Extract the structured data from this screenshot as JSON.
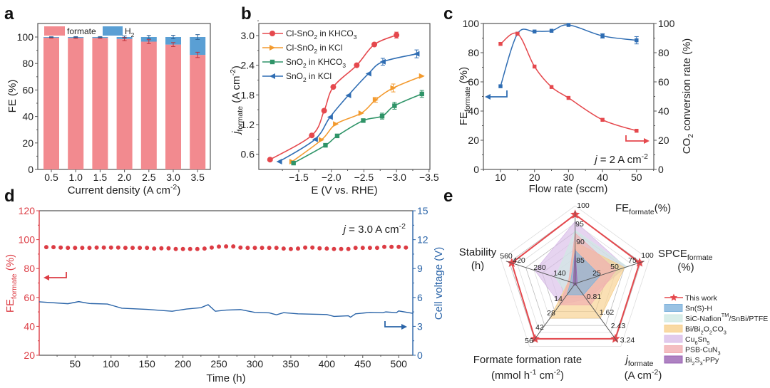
{
  "panel_labels": [
    "a",
    "b",
    "c",
    "d",
    "e"
  ],
  "colors": {
    "red": "#e5484d",
    "formate": "#f28a8f",
    "h2": "#5a9fd4",
    "orange": "#f39a2e",
    "green": "#2f9468",
    "blue": "#2f6db3",
    "d_red": "#dc3c44",
    "d_blue": "#2a64a8"
  },
  "chart_data": [
    {
      "panel": "a",
      "type": "bar",
      "stacked": true,
      "categories": [
        "0.5",
        "1.0",
        "1.5",
        "2.0",
        "2.5",
        "3.0",
        "3.5"
      ],
      "series": [
        {
          "name": "formate",
          "values": [
            99.5,
            99.3,
            99.3,
            98.5,
            96.5,
            94.3,
            86.5
          ],
          "err": [
            0.3,
            0.3,
            0.3,
            1.2,
            1.5,
            1.5,
            2.0
          ]
        },
        {
          "name": [
            [
              "H",
              ""
            ],
            [
              "2",
              "sub"
            ]
          ],
          "values": [
            0.5,
            0.7,
            0.7,
            1.5,
            3.5,
            5.7,
            13.5
          ],
          "err": [
            0.2,
            0.3,
            0.3,
            0.8,
            1.2,
            1.3,
            1.8
          ]
        }
      ],
      "xlabel": [
        [
          "Current density (A cm",
          ""
        ],
        [
          "-2",
          "sup"
        ],
        [
          ")",
          ""
        ]
      ],
      "ylabel": "FE (%)",
      "ylim": [
        0,
        110
      ],
      "yticks": [
        "0",
        "20",
        "40",
        "60",
        "80",
        "100"
      ],
      "legend": "top"
    },
    {
      "panel": "b",
      "type": "line",
      "xlabel": "E (V vs. RHE)",
      "ylabel": [
        [
          "j",
          ""
        ],
        [
          "formate",
          "sub"
        ],
        [
          " (A cm",
          ""
        ],
        [
          "-2",
          "sup"
        ],
        [
          ")",
          ""
        ]
      ],
      "xlim": [
        -0.85,
        -3.5
      ],
      "ylim": [
        0.3,
        3.24
      ],
      "xticks": [
        "−1.5",
        "−2.0",
        "−2.5",
        "−3.0",
        "−3.5"
      ],
      "yticks": [
        "0.6",
        "1.2",
        "1.8",
        "2.4",
        "3.0"
      ],
      "legend": "top-left",
      "series": [
        {
          "name": [
            [
              "Cl-SnO",
              ""
            ],
            [
              "2",
              "sub"
            ],
            [
              " in KHCO",
              ""
            ],
            [
              "3",
              "sub"
            ]
          ],
          "marker": "circle",
          "x": [
            -1.06,
            -1.7,
            -1.89,
            -2.03,
            -2.39,
            -2.66,
            -3.0
          ],
          "y": [
            0.49,
            0.98,
            1.48,
            1.96,
            2.4,
            2.82,
            3.01
          ],
          "err": [
            0,
            0,
            0,
            0,
            0,
            0,
            0.06
          ]
        },
        {
          "name": [
            [
              "Cl-SnO",
              ""
            ],
            [
              "2",
              "sub"
            ],
            [
              " in KCl",
              ""
            ]
          ],
          "marker": "triangle-right",
          "x": [
            -1.4,
            -1.85,
            -2.07,
            -2.46,
            -2.68,
            -2.95,
            -3.39
          ],
          "y": [
            0.45,
            0.89,
            1.21,
            1.43,
            1.7,
            1.94,
            2.18
          ],
          "err": [
            0,
            0,
            0,
            0,
            0.05,
            0.08,
            0
          ]
        },
        {
          "name": [
            [
              "SnO",
              ""
            ],
            [
              "2",
              "sub"
            ],
            [
              " in KHCO",
              ""
            ],
            [
              "3",
              "sub"
            ]
          ],
          "marker": "square",
          "x": [
            -1.42,
            -1.91,
            -2.09,
            -2.49,
            -2.78,
            -2.97,
            -3.39
          ],
          "y": [
            0.42,
            0.78,
            0.97,
            1.28,
            1.37,
            1.58,
            1.82
          ],
          "err": [
            0,
            0,
            0,
            0.03,
            0.06,
            0.07,
            0.07
          ]
        },
        {
          "name": [
            [
              "SnO",
              ""
            ],
            [
              "2",
              "sub"
            ],
            [
              " in KCl",
              ""
            ]
          ],
          "marker": "triangle-left",
          "x": [
            -1.2,
            -1.75,
            -1.98,
            -2.26,
            -2.57,
            -2.79,
            -3.31
          ],
          "y": [
            0.45,
            0.9,
            1.35,
            1.79,
            2.23,
            2.47,
            2.63
          ],
          "err": [
            0,
            0,
            0,
            0,
            0,
            0.07,
            0.08
          ]
        }
      ]
    },
    {
      "panel": "c",
      "type": "line",
      "xlabel": "Flow rate (sccm)",
      "ylabel": [
        [
          "FE",
          ""
        ],
        [
          "formate",
          "sub"
        ],
        [
          " (%)",
          ""
        ]
      ],
      "y2label": [
        [
          "CO",
          ""
        ],
        [
          "2",
          "sub"
        ],
        [
          " conversion rate (%)",
          ""
        ]
      ],
      "xlim": [
        5,
        55
      ],
      "ylim": [
        0,
        100
      ],
      "y2lim": [
        0,
        100
      ],
      "xticks": [
        "10",
        "20",
        "30",
        "40",
        "50"
      ],
      "yticks": [
        "0",
        "20",
        "40",
        "60",
        "80",
        "100"
      ],
      "annotation": [
        [
          "j",
          ""
        ],
        [
          " = 2 A cm",
          ""
        ],
        [
          "-2",
          "sup"
        ]
      ],
      "x": [
        10,
        15,
        20,
        25,
        30,
        40,
        50
      ],
      "series": [
        {
          "name": "FE formate",
          "axis": "left",
          "values": [
            57,
            93,
            94.5,
            95,
            99,
            91.5,
            88.5
          ],
          "err": [
            0,
            0,
            0,
            0,
            0,
            1.5,
            2.5
          ]
        },
        {
          "name": "CO2 conversion rate",
          "axis": "right",
          "values": [
            86,
            93,
            70.5,
            56.5,
            49,
            34,
            26.5
          ],
          "err": [
            0,
            0,
            0,
            0,
            0,
            0,
            0
          ]
        }
      ]
    },
    {
      "panel": "d",
      "type": "line",
      "xlabel": "Time (h)",
      "ylabel": [
        [
          "FE",
          ""
        ],
        [
          "formate",
          "sub"
        ],
        [
          " (%)",
          ""
        ]
      ],
      "y2label": "Cell voltage (V)",
      "xlim": [
        0,
        520
      ],
      "ylim": [
        20,
        120
      ],
      "y2lim": [
        0,
        15
      ],
      "xticks": [
        "50",
        "100",
        "150",
        "200",
        "250",
        "300",
        "350",
        "400",
        "450",
        "500"
      ],
      "yticks": [
        "20",
        "40",
        "60",
        "80",
        "100",
        "120"
      ],
      "y2ticks": [
        "0",
        "3",
        "6",
        "9",
        "12",
        "15"
      ],
      "annotation": [
        [
          "j",
          ""
        ],
        [
          " = 3.0 A cm",
          ""
        ],
        [
          "-2",
          "sup"
        ]
      ],
      "fe": {
        "t": [
          10,
          20,
          30,
          40,
          50,
          60,
          70,
          80,
          90,
          100,
          110,
          120,
          130,
          140,
          150,
          160,
          170,
          180,
          190,
          200,
          210,
          220,
          230,
          240,
          250,
          260,
          270,
          280,
          290,
          300,
          310,
          320,
          330,
          340,
          350,
          360,
          370,
          380,
          390,
          400,
          410,
          420,
          430,
          440,
          450,
          460,
          470,
          480,
          490,
          500,
          510
        ],
        "values": [
          94.8,
          94.8,
          94.5,
          94.3,
          94.3,
          94.3,
          94.3,
          94.5,
          94.5,
          94.5,
          94.5,
          94.3,
          94.3,
          94.3,
          94.3,
          93.8,
          94.0,
          94.0,
          93.5,
          93.5,
          93.5,
          93.5,
          93.8,
          94.5,
          95.2,
          95.3,
          95.3,
          94.5,
          94.3,
          94.3,
          94.3,
          94.3,
          94.3,
          93.8,
          93.5,
          93.8,
          94.5,
          94.5,
          94.0,
          93.8,
          93.5,
          93.5,
          93.5,
          94.3,
          94.3,
          94.3,
          94.3,
          95.0,
          95.0,
          95.0,
          94.5
        ]
      },
      "voltage": {
        "t": [
          0,
          40,
          55,
          70,
          95,
          105,
          115,
          150,
          185,
          205,
          225,
          235,
          245,
          260,
          280,
          300,
          320,
          330,
          340,
          360,
          400,
          410,
          430,
          433,
          440,
          460,
          478,
          482,
          497,
          500,
          520
        ],
        "values": [
          5.55,
          5.35,
          5.57,
          5.37,
          5.32,
          5.1,
          4.88,
          4.76,
          4.57,
          4.8,
          4.94,
          5.25,
          4.57,
          4.69,
          4.74,
          4.45,
          4.4,
          4.2,
          4.42,
          4.3,
          4.23,
          4.03,
          4.1,
          3.95,
          4.3,
          4.45,
          4.42,
          4.5,
          4.42,
          4.6,
          4.35
        ]
      }
    },
    {
      "panel": "e",
      "type": "radar",
      "axes": [
        {
          "name": [
            [
              "FE",
              ""
            ],
            [
              "formate",
              "sub"
            ],
            [
              "(%)",
              ""
            ]
          ],
          "unit": "",
          "range": [
            80,
            100
          ],
          "ticks": [
            "85",
            "90",
            "95",
            "100"
          ]
        },
        {
          "name": [
            [
              "SPCE",
              ""
            ],
            [
              "formate",
              "sub"
            ]
          ],
          "unit": "(%)",
          "range": [
            0,
            100
          ],
          "ticks": [
            "25",
            "50",
            "75",
            "100"
          ]
        },
        {
          "name": [
            [
              "j",
              ""
            ],
            [
              "formate",
              "sub"
            ]
          ],
          "unit": [
            [
              "(A cm",
              ""
            ],
            [
              "-2",
              "sup"
            ],
            [
              ")",
              ""
            ]
          ],
          "range": [
            0,
            3.24
          ],
          "ticks": [
            "0.81",
            "1.62",
            "2.43",
            "3.24"
          ]
        },
        {
          "name": "Formate formation rate",
          "unit": [
            [
              "(mmol h",
              ""
            ],
            [
              "-1",
              "sup"
            ],
            [
              " cm",
              ""
            ],
            [
              "-2",
              "sup"
            ],
            [
              ")",
              ""
            ]
          ],
          "range": [
            0,
            56
          ],
          "ticks": [
            "14",
            "28",
            "42",
            "56"
          ]
        },
        {
          "name": "Stability",
          "unit": "(h)",
          "range": [
            0,
            560
          ],
          "ticks": [
            "140",
            "280",
            "420",
            "560"
          ]
        }
      ],
      "series": [
        {
          "name": [
            [
              "Cu",
              ""
            ],
            [
              "6",
              "sub"
            ],
            [
              "Sn",
              ""
            ],
            [
              "5",
              "sub"
            ]
          ],
          "color": "#d9bde8",
          "values": [
            98,
            77,
            0.91,
            20.7,
            342
          ]
        },
        {
          "name": [
            [
              "SiC-Nafion",
              ""
            ],
            [
              "TM",
              "sup"
            ],
            [
              "/SnBi/PTFE",
              ""
            ]
          ],
          "color": "#cfeae3",
          "values": [
            95.4,
            79,
            0.65,
            11.2,
            168
          ]
        },
        {
          "name": [
            [
              "Bi/Bi",
              ""
            ],
            [
              "2",
              "sub"
            ],
            [
              "O",
              ""
            ],
            [
              "2",
              "sub"
            ],
            [
              "CO",
              ""
            ],
            [
              "3",
              "sub"
            ]
          ],
          "color": "#f7cf8c",
          "values": [
            92,
            75,
            2.0,
            34.7,
            56
          ]
        },
        {
          "name": [
            [
              "PSB-CuN",
              ""
            ],
            [
              "3",
              "sub"
            ]
          ],
          "color": "#f1aeb1",
          "values": [
            94.6,
            62,
            1.23,
            21.3,
            56
          ]
        },
        {
          "name": "Sn(S)-H",
          "color": "#7fb3dc",
          "values": [
            89.6,
            38,
            0.65,
            11.2,
            39
          ]
        },
        {
          "name": [
            [
              "Bi",
              ""
            ],
            [
              "2",
              "sub"
            ],
            [
              "S",
              ""
            ],
            [
              "3",
              "sub"
            ],
            [
              "-PPy",
              ""
            ]
          ],
          "color": "#9a63b3",
          "values": [
            90,
            3,
            0.1,
            1.7,
            17
          ]
        },
        {
          "name": "This work",
          "color": "#e5484d",
          "values": [
            100,
            98,
            3.2,
            55.4,
            540
          ]
        }
      ],
      "legend_order": [
        6,
        4,
        1,
        2,
        0,
        3,
        5
      ]
    }
  ]
}
